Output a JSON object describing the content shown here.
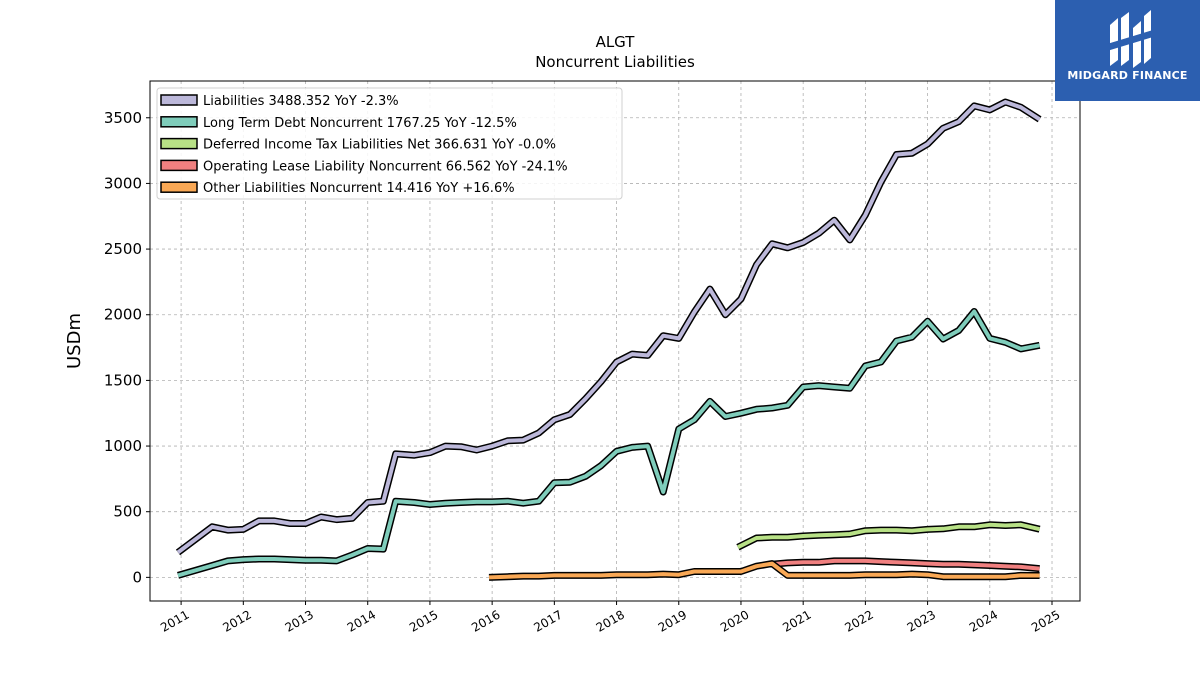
{
  "chart_data": {
    "type": "line",
    "title": "ALGT",
    "subtitle": "Noncurrent  Liabilities",
    "ylabel": "USDm",
    "xlabel": "",
    "ylim": [
      -180,
      3780
    ],
    "xlim": [
      2010.5,
      2025.45
    ],
    "yticks": [
      0,
      500,
      1000,
      1500,
      2000,
      2500,
      3000,
      3500
    ],
    "xticks": [
      "2011",
      "2012",
      "2013",
      "2014",
      "2015",
      "2016",
      "2017",
      "2018",
      "2019",
      "2020",
      "2021",
      "2022",
      "2023",
      "2024",
      "2025"
    ],
    "grid": true,
    "legend_position": "top-left",
    "series": [
      {
        "name": "Liabilities",
        "legend": "Liabilities  3488.352 YoY -2.3%",
        "color": "#bcb8da",
        "x": [
          2010.95,
          2011.5,
          2011.75,
          2012.0,
          2012.25,
          2012.5,
          2012.75,
          2013.0,
          2013.25,
          2013.5,
          2013.75,
          2014.0,
          2014.25,
          2014.45,
          2014.75,
          2015.0,
          2015.25,
          2015.5,
          2015.75,
          2016.0,
          2016.25,
          2016.5,
          2016.75,
          2017.0,
          2017.25,
          2017.5,
          2017.75,
          2018.0,
          2018.25,
          2018.5,
          2018.75,
          2019.0,
          2019.25,
          2019.5,
          2019.75,
          2020.0,
          2020.25,
          2020.5,
          2020.75,
          2021.0,
          2021.25,
          2021.5,
          2021.75,
          2022.0,
          2022.25,
          2022.5,
          2022.75,
          2023.0,
          2023.25,
          2023.5,
          2023.75,
          2024.0,
          2024.25,
          2024.5,
          2024.8
        ],
        "y": [
          190,
          385,
          360,
          365,
          430,
          430,
          410,
          410,
          460,
          440,
          450,
          570,
          580,
          940,
          930,
          950,
          1000,
          995,
          970,
          1000,
          1040,
          1045,
          1100,
          1200,
          1240,
          1360,
          1490,
          1640,
          1700,
          1690,
          1840,
          1820,
          2020,
          2195,
          2000,
          2120,
          2380,
          2540,
          2510,
          2550,
          2620,
          2720,
          2570,
          2760,
          3010,
          3220,
          3230,
          3300,
          3420,
          3470,
          3590,
          3560,
          3620,
          3580,
          3488
        ]
      },
      {
        "name": "Long Term Debt Noncurrent",
        "legend": "Long Term Debt Noncurrent  1767.25 YoY -12.5%",
        "color": "#7fcdbb",
        "x": [
          2010.95,
          2011.5,
          2011.75,
          2012.0,
          2012.25,
          2012.5,
          2012.75,
          2013.0,
          2013.25,
          2013.5,
          2013.75,
          2014.0,
          2014.25,
          2014.45,
          2014.75,
          2015.0,
          2015.25,
          2015.5,
          2015.75,
          2016.0,
          2016.25,
          2016.5,
          2016.75,
          2017.0,
          2017.25,
          2017.5,
          2017.75,
          2018.0,
          2018.25,
          2018.5,
          2018.75,
          2019.0,
          2019.25,
          2019.5,
          2019.75,
          2020.0,
          2020.25,
          2020.5,
          2020.75,
          2021.0,
          2021.25,
          2021.5,
          2021.75,
          2022.0,
          2022.25,
          2022.5,
          2022.75,
          2023.0,
          2023.25,
          2023.5,
          2023.75,
          2024.0,
          2024.25,
          2024.5,
          2024.8
        ],
        "y": [
          15,
          90,
          125,
          135,
          140,
          140,
          135,
          130,
          130,
          125,
          170,
          220,
          215,
          580,
          570,
          555,
          565,
          570,
          575,
          575,
          580,
          565,
          580,
          720,
          725,
          770,
          850,
          960,
          990,
          1000,
          650,
          1130,
          1200,
          1340,
          1225,
          1250,
          1280,
          1290,
          1310,
          1450,
          1460,
          1450,
          1440,
          1610,
          1640,
          1800,
          1830,
          1950,
          1815,
          1880,
          2025,
          1820,
          1790,
          1740,
          1767
        ]
      },
      {
        "name": "Deferred Income Tax Liabilities Net",
        "legend": "Deferred Income Tax Liabilities Net  366.631 YoY -0.0%",
        "color": "#b8e186",
        "x": [
          2019.95,
          2020.25,
          2020.5,
          2020.75,
          2021.0,
          2021.25,
          2021.5,
          2021.75,
          2022.0,
          2022.25,
          2022.5,
          2022.75,
          2023.0,
          2023.25,
          2023.5,
          2023.75,
          2024.0,
          2024.25,
          2024.5,
          2024.8
        ],
        "y": [
          230,
          300,
          305,
          305,
          315,
          320,
          325,
          330,
          355,
          360,
          360,
          355,
          365,
          370,
          385,
          385,
          400,
          395,
          400,
          367
        ]
      },
      {
        "name": "Operating Lease Liability Noncurrent",
        "legend": "Operating Lease Liability Noncurrent  66.562 YoY -24.1%",
        "color": "#f08080",
        "x": [
          2020.5,
          2020.75,
          2021.0,
          2021.25,
          2021.5,
          2021.75,
          2022.0,
          2022.25,
          2022.5,
          2022.75,
          2023.0,
          2023.25,
          2023.5,
          2023.75,
          2024.0,
          2024.25,
          2024.5,
          2024.8
        ],
        "y": [
          100,
          110,
          115,
          115,
          125,
          125,
          125,
          120,
          115,
          110,
          105,
          100,
          100,
          95,
          90,
          85,
          80,
          67
        ]
      },
      {
        "name": "Other Liabilities Noncurrent",
        "legend": "Other Liabilities Noncurrent  14.416 YoY +16.6%",
        "color": "#f9a855",
        "x": [
          2015.95,
          2016.25,
          2016.5,
          2016.75,
          2017.0,
          2017.25,
          2017.5,
          2017.75,
          2018.0,
          2018.25,
          2018.5,
          2018.75,
          2019.0,
          2019.25,
          2019.5,
          2019.75,
          2020.0,
          2020.25,
          2020.5,
          2020.75,
          2021.0,
          2021.25,
          2021.5,
          2021.75,
          2022.0,
          2022.25,
          2022.5,
          2022.75,
          2023.0,
          2023.25,
          2023.5,
          2023.75,
          2024.0,
          2024.25,
          2024.5,
          2024.8
        ],
        "y": [
          0,
          5,
          10,
          10,
          15,
          15,
          15,
          15,
          20,
          20,
          20,
          25,
          20,
          45,
          45,
          45,
          45,
          85,
          105,
          15,
          15,
          15,
          15,
          15,
          20,
          20,
          20,
          25,
          20,
          5,
          5,
          5,
          5,
          5,
          15,
          14
        ]
      }
    ]
  },
  "logo": {
    "text": "MIDGARD FINANCE"
  }
}
